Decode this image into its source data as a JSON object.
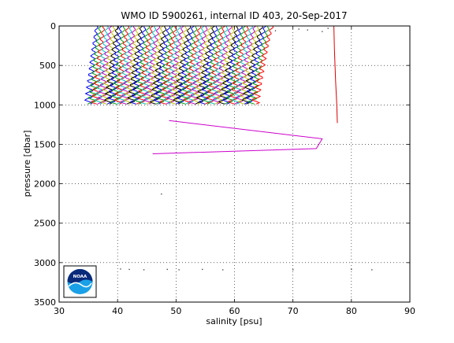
{
  "chart_data": {
    "type": "line",
    "title": "WMO ID 5900261, internal ID 403, 20-Sep-2017",
    "xlabel": "salinity [psu]",
    "ylabel": "pressure [dbar]",
    "xlim": [
      30,
      90
    ],
    "ylim": [
      0,
      3500
    ],
    "y_reversed": true,
    "grid": "dotted",
    "x_ticks": [
      30,
      40,
      50,
      60,
      70,
      80,
      90
    ],
    "y_ticks": [
      0,
      500,
      1000,
      1500,
      2000,
      2500,
      3000,
      3500
    ],
    "logo": "NOAA",
    "profile_bundle": {
      "count": 52,
      "first_surface_salinity": 36.5,
      "last_surface_salinity": 66.5,
      "first_bottom_salinity": 35.0,
      "last_bottom_salinity": 63.5,
      "top_pressure": 0,
      "bottom_pressure": 990,
      "wiggle_amplitude": 0.7,
      "colors": [
        "#0000ff",
        "#00a000",
        "#ff0000",
        "#00c0c0",
        "#c000c0",
        "#c0c000",
        "#000000"
      ]
    },
    "series": [
      {
        "color": "#dd0000",
        "points": [
          [
            77.0,
            0
          ],
          [
            77.1,
            300
          ],
          [
            77.3,
            700
          ],
          [
            77.5,
            1000
          ],
          [
            77.6,
            1230
          ]
        ]
      },
      {
        "color": "#cc00cc",
        "points": [
          [
            48.8,
            1200
          ],
          [
            75.0,
            1430
          ],
          [
            74.0,
            1555
          ],
          [
            46.0,
            1620
          ]
        ]
      }
    ],
    "scatter_points": [
      [
        47.5,
        2130
      ],
      [
        40.5,
        3080
      ],
      [
        42.0,
        3085
      ],
      [
        44.5,
        3090
      ],
      [
        48.5,
        3085
      ],
      [
        50.5,
        3090
      ],
      [
        54.5,
        3085
      ],
      [
        58.0,
        3090
      ],
      [
        70.0,
        3090
      ],
      [
        80.0,
        3085
      ],
      [
        83.5,
        3090
      ],
      [
        67.0,
        60
      ],
      [
        71.0,
        40
      ],
      [
        72.5,
        50
      ],
      [
        75.0,
        70
      ],
      [
        76.0,
        30
      ]
    ]
  }
}
